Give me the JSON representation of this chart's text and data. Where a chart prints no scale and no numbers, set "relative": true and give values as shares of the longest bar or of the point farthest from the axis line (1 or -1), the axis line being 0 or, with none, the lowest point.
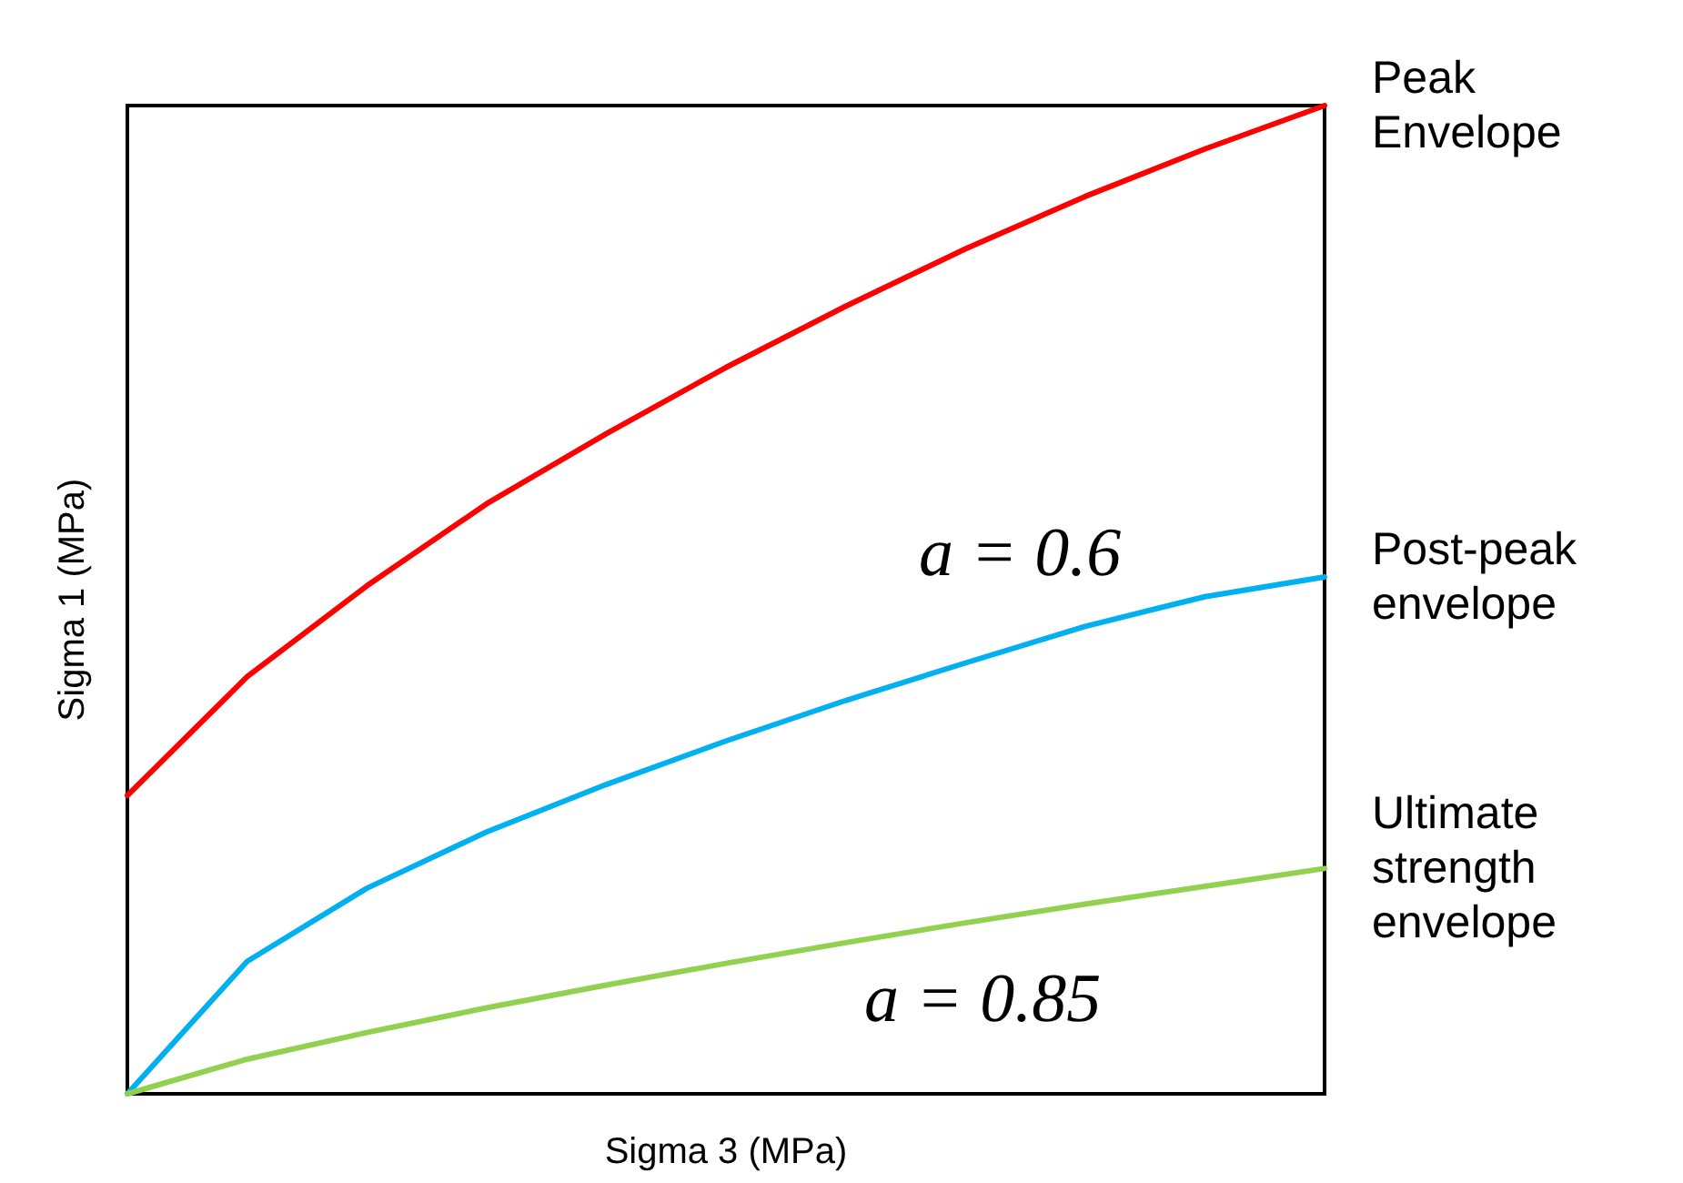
{
  "chart_data": {
    "type": "line",
    "relative": true,
    "xlabel": "Sigma 3 (MPa)",
    "ylabel": "Sigma 1 (MPa)",
    "categories": [
      null,
      null,
      null,
      null,
      null,
      null,
      null,
      null,
      null,
      null,
      null
    ],
    "series": [
      {
        "name": "Peak Envelope",
        "color": "#ff0000",
        "values": [
          0.302,
          0.422,
          0.514,
          0.597,
          0.668,
          0.735,
          0.797,
          0.855,
          0.908,
          0.956,
          1
        ]
      },
      {
        "name": "Post-peak envelope",
        "color": "#00b0f0",
        "values": [
          0,
          0.134,
          0.208,
          0.265,
          0.313,
          0.357,
          0.398,
          0.436,
          0.473,
          0.503,
          0.523
        ]
      },
      {
        "name": "Ultimate strength envelope",
        "color": "#92d050",
        "values": [
          0,
          0.035,
          0.062,
          0.087,
          0.11,
          0.132,
          0.153,
          0.173,
          0.192,
          0.21,
          0.228
        ]
      }
    ],
    "annotations": [
      "a = 0.6",
      "a = 0.85"
    ],
    "legend": false
  }
}
